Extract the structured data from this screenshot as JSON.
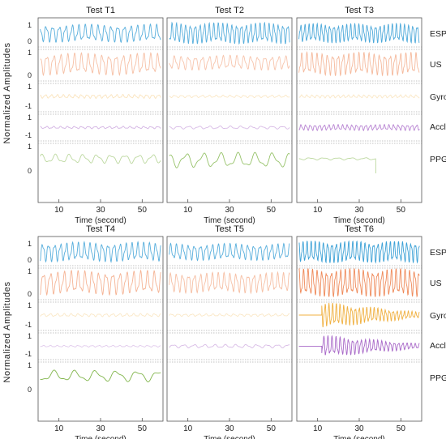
{
  "figure": {
    "ylabel": "Normalized  Amplitudes",
    "xlabel": "Time (second)"
  },
  "chart_data": {
    "type": "line",
    "xlabel": "Time (second)",
    "ylabel": "Normalized Amplitudes",
    "xticks": [
      10,
      30,
      50
    ],
    "xlim": [
      0,
      60
    ],
    "grid": "horizontal dotted separators between channels",
    "channels": [
      {
        "name": "ESP",
        "color": "#3aa0d6",
        "yticks": [
          "1",
          "0"
        ]
      },
      {
        "name": "US",
        "color": "#ef8a5a",
        "yticks": [
          "1",
          "0"
        ]
      },
      {
        "name": "Gyro",
        "color": "#f0b040",
        "yticks": [
          "1",
          "-1"
        ]
      },
      {
        "name": "Accl",
        "color": "#a868c8",
        "yticks": [
          "1",
          "-1"
        ]
      },
      {
        "name": "PPG",
        "color": "#6aa82a",
        "yticks": [
          "1",
          "0"
        ]
      }
    ],
    "panels": [
      {
        "title": "Test T1",
        "row": 0,
        "col": 0,
        "traces": {
          "ESP": {
            "amp": 0.32,
            "freq": 0.32,
            "opacity": 0.85,
            "base": 0.5
          },
          "US": {
            "amp": 0.3,
            "freq": 0.3,
            "opacity": 0.55,
            "base": 0.5
          },
          "Gyro": {
            "amp": 0.06,
            "freq": 0.35,
            "opacity": 0.35,
            "base": 0.5
          },
          "Accl": {
            "amp": 0.04,
            "freq": 0.3,
            "opacity": 0.5,
            "base": 0.45
          },
          "PPG": {
            "amp": 0.12,
            "freq": 0.15,
            "opacity": 0.45,
            "base": 0.5
          }
        }
      },
      {
        "title": "Test T2",
        "row": 0,
        "col": 1,
        "traces": {
          "ESP": {
            "amp": 0.38,
            "freq": 0.45,
            "opacity": 0.85,
            "base": 0.5
          },
          "US": {
            "amp": 0.2,
            "freq": 0.3,
            "opacity": 0.5,
            "base": 0.55
          },
          "Gyro": {
            "amp": 0.04,
            "freq": 0.3,
            "opacity": 0.3,
            "base": 0.5
          },
          "Accl": {
            "amp": 0.05,
            "freq": 0.2,
            "opacity": 0.45,
            "base": 0.45
          },
          "PPG": {
            "amp": 0.2,
            "freq": 0.12,
            "opacity": 0.7,
            "base": 0.45
          }
        }
      },
      {
        "title": "Test T3",
        "row": 0,
        "col": 2,
        "traces": {
          "ESP": {
            "amp": 0.35,
            "freq": 0.5,
            "opacity": 0.9,
            "base": 0.5
          },
          "US": {
            "amp": 0.32,
            "freq": 0.4,
            "opacity": 0.6,
            "base": 0.5
          },
          "Gyro": {
            "amp": 0.05,
            "freq": 0.4,
            "opacity": 0.3,
            "base": 0.5
          },
          "Accl": {
            "amp": 0.1,
            "freq": 0.45,
            "opacity": 0.8,
            "base": 0.45
          },
          "PPG": {
            "amp": 0.03,
            "freq": 0.15,
            "opacity": 0.45,
            "base": 0.5,
            "cut": 38
          }
        }
      },
      {
        "title": "Test T4",
        "row": 1,
        "col": 0,
        "traces": {
          "ESP": {
            "amp": 0.35,
            "freq": 0.35,
            "opacity": 0.85,
            "base": 0.5
          },
          "US": {
            "amp": 0.33,
            "freq": 0.3,
            "opacity": 0.65,
            "base": 0.5
          },
          "Gyro": {
            "amp": 0.05,
            "freq": 0.3,
            "opacity": 0.3,
            "base": 0.5
          },
          "Accl": {
            "amp": 0.03,
            "freq": 0.3,
            "opacity": 0.35,
            "base": 0.45
          },
          "PPG": {
            "amp": 0.15,
            "freq": 0.1,
            "opacity": 0.85,
            "base": 0.55
          }
        }
      },
      {
        "title": "Test T5",
        "row": 1,
        "col": 1,
        "traces": {
          "ESP": {
            "amp": 0.3,
            "freq": 0.35,
            "opacity": 0.85,
            "base": 0.5
          },
          "US": {
            "amp": 0.28,
            "freq": 0.35,
            "opacity": 0.55,
            "base": 0.5
          },
          "Gyro": {
            "amp": 0.04,
            "freq": 0.3,
            "opacity": 0.3,
            "base": 0.5
          },
          "Accl": {
            "amp": 0.06,
            "freq": 0.2,
            "opacity": 0.45,
            "base": 0.45
          },
          "PPG": {
            "amp": 0,
            "freq": 0,
            "opacity": 0,
            "base": 0.5
          }
        }
      },
      {
        "title": "Test T6",
        "row": 1,
        "col": 2,
        "traces": {
          "ESP": {
            "amp": 0.4,
            "freq": 0.5,
            "opacity": 1,
            "base": 0.5
          },
          "US": {
            "amp": 0.4,
            "freq": 0.45,
            "opacity": 1,
            "base": 0.5
          },
          "Gyro": {
            "amp": 0.42,
            "freq": 0.55,
            "opacity": 1,
            "base": 0.5,
            "start": 12,
            "decay": true
          },
          "Accl": {
            "amp": 0.38,
            "freq": 0.5,
            "opacity": 1,
            "base": 0.45,
            "start": 12,
            "decay": true
          },
          "PPG": {
            "amp": 0,
            "freq": 0,
            "opacity": 0,
            "base": 0.5
          }
        }
      }
    ]
  }
}
